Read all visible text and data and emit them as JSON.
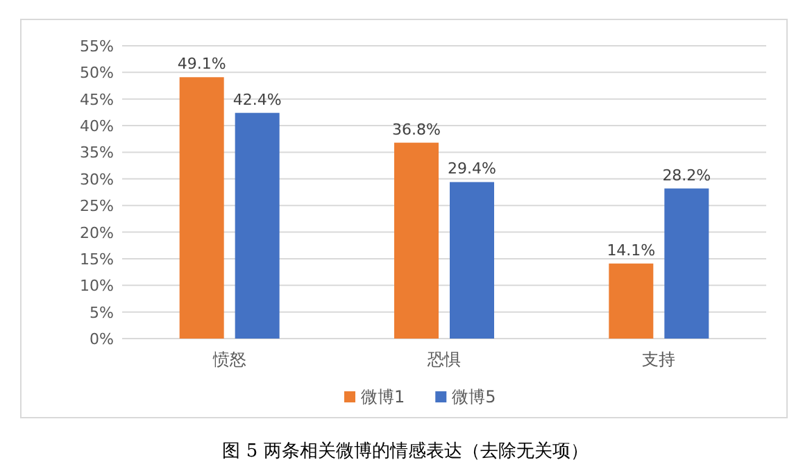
{
  "chart_data": {
    "type": "bar",
    "categories": [
      "愤怒",
      "恐惧",
      "支持"
    ],
    "series": [
      {
        "name": "微博1",
        "color": "#ed7d31",
        "values": [
          49.1,
          36.8,
          14.1
        ],
        "value_labels": [
          "49.1%",
          "36.8%",
          "14.1%"
        ]
      },
      {
        "name": "微博5",
        "color": "#4472c4",
        "values": [
          42.4,
          29.4,
          28.2
        ],
        "value_labels": [
          "42.4%",
          "29.4%",
          "28.2%"
        ]
      }
    ],
    "ylim": [
      0,
      55
    ],
    "yticks": [
      {
        "value": 0,
        "label": "0%"
      },
      {
        "value": 5,
        "label": "5%"
      },
      {
        "value": 10,
        "label": "10%"
      },
      {
        "value": 15,
        "label": "15%"
      },
      {
        "value": 20,
        "label": "20%"
      },
      {
        "value": 25,
        "label": "25%"
      },
      {
        "value": 30,
        "label": "30%"
      },
      {
        "value": 35,
        "label": "35%"
      },
      {
        "value": 40,
        "label": "40%"
      },
      {
        "value": 45,
        "label": "45%"
      },
      {
        "value": 50,
        "label": "50%"
      },
      {
        "value": 55,
        "label": "55%"
      }
    ],
    "grid": "y",
    "legend": "bottom",
    "annotations": [
      "图 5 两条相关微博的情感表达（去除无关项）"
    ]
  }
}
